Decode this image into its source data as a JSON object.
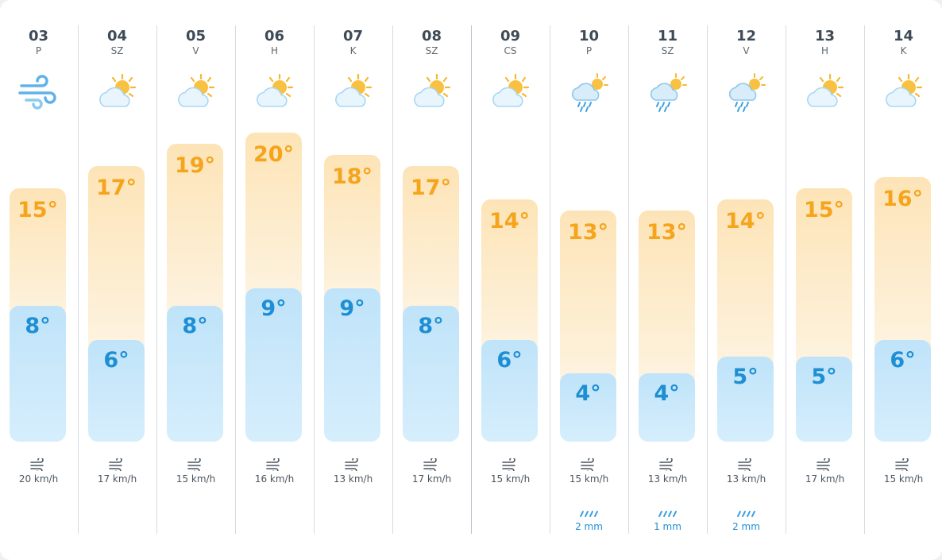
{
  "colors": {
    "high_temp": "#f5a41c",
    "low_temp": "#1e8fd4",
    "rain": "#1e8fd4"
  },
  "chart_data": {
    "type": "bar",
    "categories": [
      "03",
      "04",
      "05",
      "06",
      "07",
      "08",
      "09",
      "10",
      "11",
      "12",
      "13",
      "14"
    ],
    "series": [
      {
        "values": [
          15,
          17,
          19,
          20,
          18,
          17,
          14,
          13,
          13,
          14,
          15,
          16
        ]
      },
      {
        "values": [
          8,
          6,
          8,
          9,
          9,
          8,
          6,
          4,
          4,
          5,
          5,
          6
        ]
      }
    ],
    "ylim": [
      4,
      20
    ]
  },
  "days": [
    {
      "date": "03",
      "weekday": "P",
      "icon": "wind-icon",
      "high": "15°",
      "low": "8°",
      "wind": "20 km/h",
      "rain": ""
    },
    {
      "date": "04",
      "weekday": "SZ",
      "icon": "sun-cloud-icon",
      "high": "17°",
      "low": "6°",
      "wind": "17 km/h",
      "rain": ""
    },
    {
      "date": "05",
      "weekday": "V",
      "icon": "sun-cloud-icon",
      "high": "19°",
      "low": "8°",
      "wind": "15 km/h",
      "rain": ""
    },
    {
      "date": "06",
      "weekday": "H",
      "icon": "sun-cloud-icon",
      "high": "20°",
      "low": "9°",
      "wind": "16 km/h",
      "rain": ""
    },
    {
      "date": "07",
      "weekday": "K",
      "icon": "sun-cloud-icon",
      "high": "18°",
      "low": "9°",
      "wind": "13 km/h",
      "rain": ""
    },
    {
      "date": "08",
      "weekday": "SZ",
      "icon": "sun-cloud-icon",
      "high": "17°",
      "low": "8°",
      "wind": "17 km/h",
      "rain": ""
    },
    {
      "date": "09",
      "weekday": "CS",
      "icon": "sun-cloud-icon",
      "high": "14°",
      "low": "6°",
      "wind": "15 km/h",
      "rain": ""
    },
    {
      "date": "10",
      "weekday": "P",
      "icon": "sun-rain-icon",
      "high": "13°",
      "low": "4°",
      "wind": "15 km/h",
      "rain": "2 mm"
    },
    {
      "date": "11",
      "weekday": "SZ",
      "icon": "sun-rain-icon",
      "high": "13°",
      "low": "4°",
      "wind": "13 km/h",
      "rain": "1 mm"
    },
    {
      "date": "12",
      "weekday": "V",
      "icon": "sun-rain-icon",
      "high": "14°",
      "low": "5°",
      "wind": "13 km/h",
      "rain": "2 mm"
    },
    {
      "date": "13",
      "weekday": "H",
      "icon": "sun-cloud-icon",
      "high": "15°",
      "low": "5°",
      "wind": "17 km/h",
      "rain": ""
    },
    {
      "date": "14",
      "weekday": "K",
      "icon": "sun-cloud-icon",
      "high": "16°",
      "low": "6°",
      "wind": "15 km/h",
      "rain": ""
    }
  ]
}
